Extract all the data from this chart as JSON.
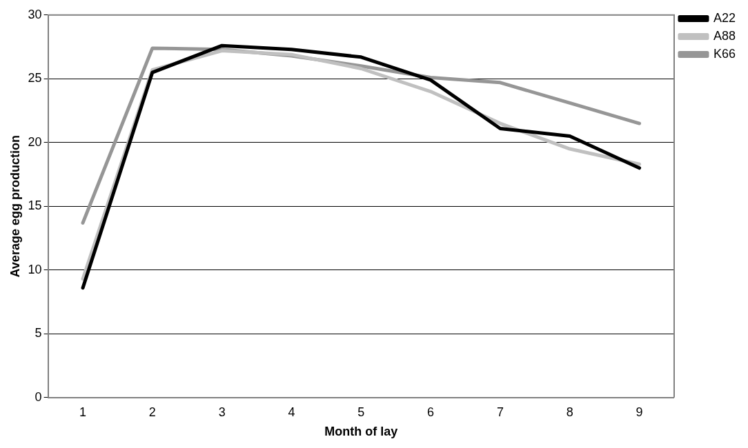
{
  "chart_data": {
    "type": "line",
    "xlabel": "Month of lay",
    "ylabel": "Average egg production",
    "categories": [
      "1",
      "2",
      "3",
      "4",
      "5",
      "6",
      "7",
      "8",
      "9"
    ],
    "series": [
      {
        "name": "A22",
        "color": "#000000",
        "values": [
          8.6,
          25.5,
          27.6,
          27.3,
          26.7,
          24.9,
          21.1,
          20.5,
          18.0
        ]
      },
      {
        "name": "A88",
        "color": "#c0c0c0",
        "values": [
          9.3,
          25.7,
          27.2,
          26.9,
          25.8,
          24.0,
          21.5,
          19.5,
          18.3
        ]
      },
      {
        "name": "K66",
        "color": "#969696",
        "values": [
          13.7,
          27.4,
          27.3,
          26.8,
          26.0,
          25.1,
          24.7,
          23.1,
          21.5
        ]
      }
    ],
    "ylim": [
      0,
      30
    ],
    "yticks": [
      0,
      5,
      10,
      15,
      20,
      25,
      30
    ],
    "grid": "y",
    "legend": "top right",
    "marker": "none",
    "line_style": "solid"
  }
}
